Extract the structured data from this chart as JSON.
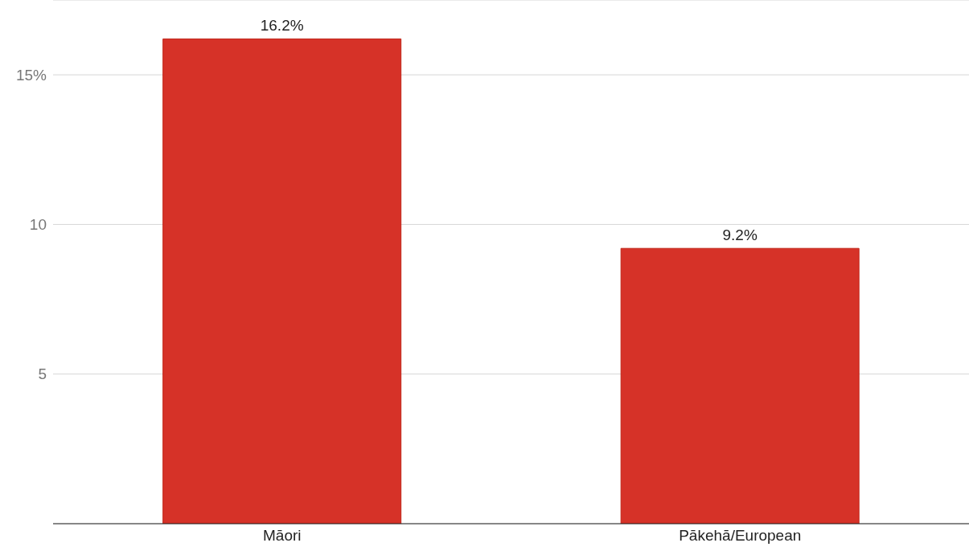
{
  "chart_data": {
    "type": "bar",
    "categories": [
      "Māori",
      "Pākehā/European"
    ],
    "values": [
      16.2,
      9.2
    ],
    "value_labels": [
      "16.2%",
      "9.2%"
    ],
    "color": "#d63228",
    "ylim": [
      0,
      17.5
    ],
    "yticks": [
      5,
      10,
      {
        "value": 15,
        "label": "15%"
      }
    ],
    "grid": "y",
    "legend": false
  }
}
